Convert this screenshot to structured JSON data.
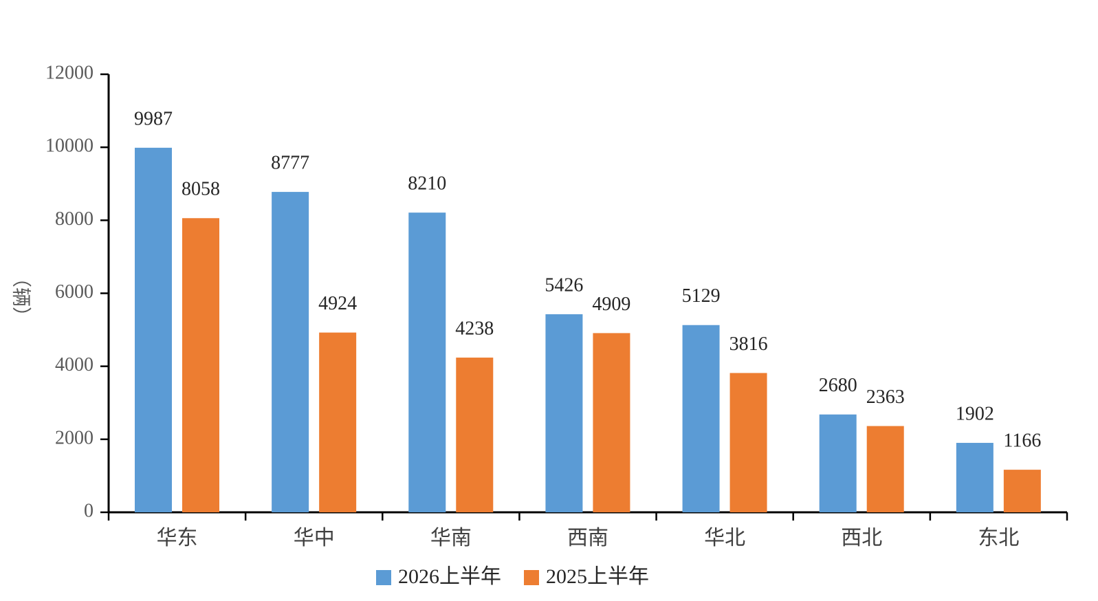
{
  "chart_data": {
    "type": "bar",
    "y_label": "（辆）",
    "categories": [
      "华东",
      "华中",
      "华南",
      "西南",
      "华北",
      "西北",
      "东北"
    ],
    "series": [
      {
        "name": "2026上半年",
        "color": "#5b9bd5",
        "values": [
          9987,
          8777,
          8210,
          5426,
          5129,
          2680,
          1902
        ]
      },
      {
        "name": "2025上半年",
        "color": "#ed7d31",
        "values": [
          8058,
          4924,
          4238,
          4909,
          3816,
          2363,
          1166
        ]
      }
    ],
    "ylim": [
      0,
      12000
    ],
    "yticks": [
      0,
      2000,
      4000,
      6000,
      8000,
      10000,
      12000
    ]
  }
}
